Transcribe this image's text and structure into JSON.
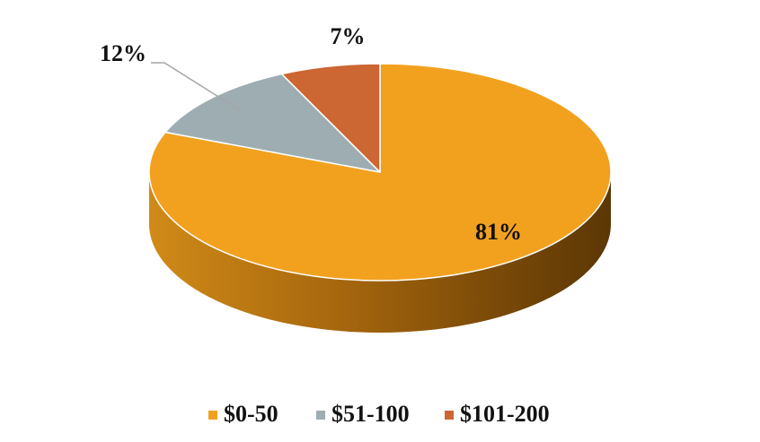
{
  "chart_data": {
    "type": "pie",
    "style": "3d",
    "categories": [
      "$0-50",
      "$51-100",
      "$101-200"
    ],
    "values": [
      81,
      12,
      7
    ],
    "labels": [
      "81%",
      "12%",
      "7%"
    ],
    "colors": [
      "#F2A11F",
      "#9DADB2",
      "#CC6632"
    ],
    "title": "",
    "legend": "bottom"
  }
}
